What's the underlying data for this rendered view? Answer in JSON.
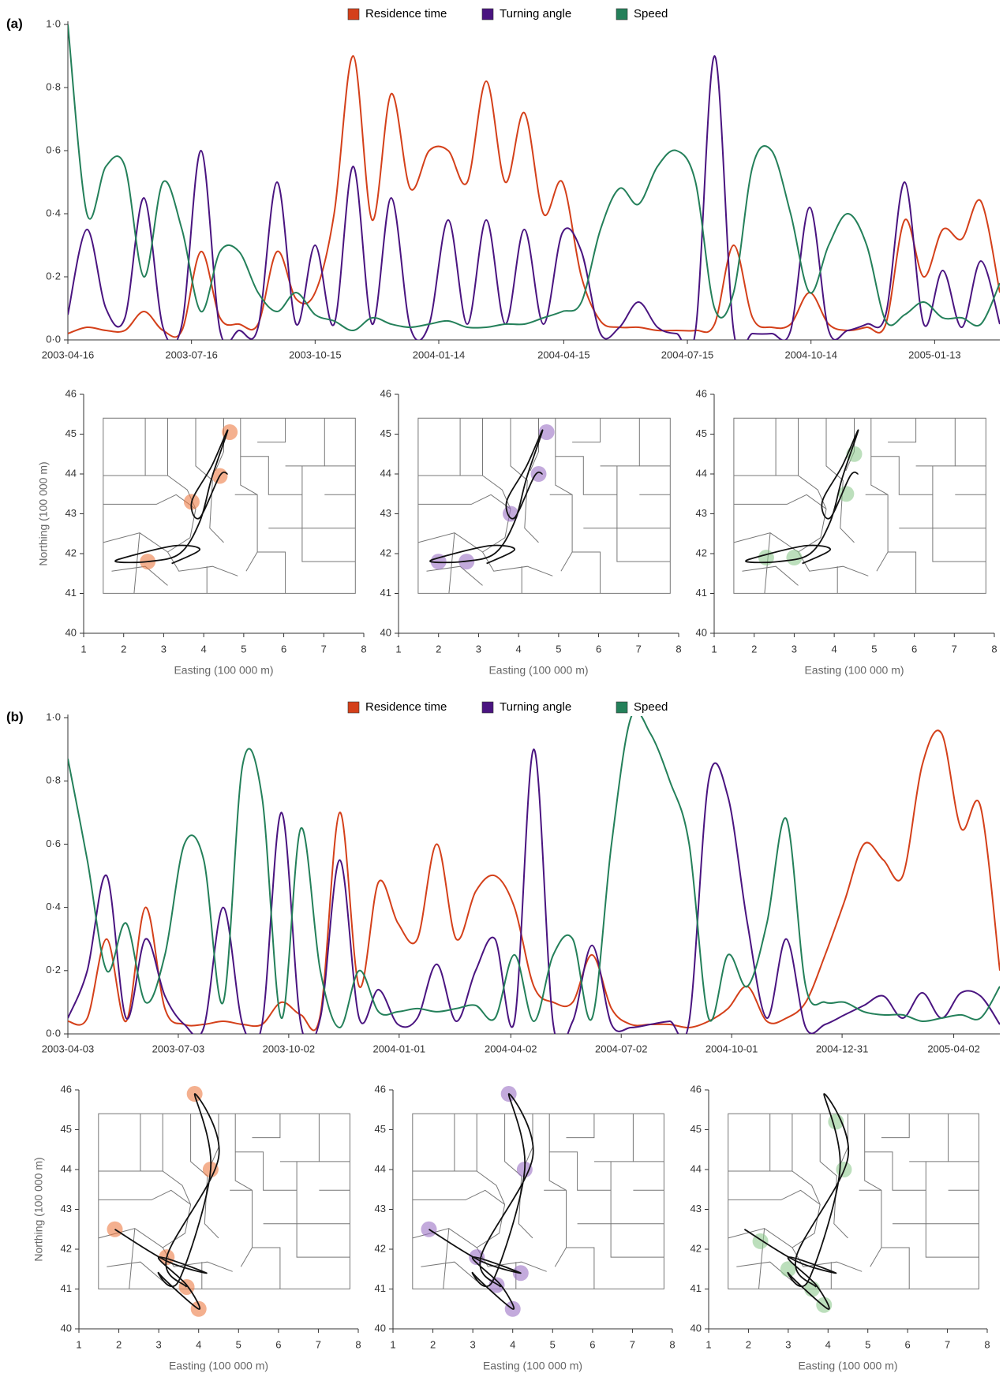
{
  "chart_data": [
    {
      "type": "line",
      "label": "(a)",
      "x": [
        "2003-04-16",
        "2003-04-30",
        "2003-05-14",
        "2003-05-28",
        "2003-06-11",
        "2003-06-25",
        "2003-07-09",
        "2003-07-23",
        "2003-08-06",
        "2003-08-20",
        "2003-09-03",
        "2003-09-17",
        "2003-10-01",
        "2003-10-15",
        "2003-10-29",
        "2003-11-12",
        "2003-11-26",
        "2003-12-10",
        "2003-12-24",
        "2004-01-07",
        "2004-01-21",
        "2004-02-04",
        "2004-02-18",
        "2004-03-03",
        "2004-03-17",
        "2004-03-31",
        "2004-04-14",
        "2004-04-28",
        "2004-05-12",
        "2004-05-26",
        "2004-06-09",
        "2004-06-23",
        "2004-07-07",
        "2004-07-21",
        "2004-08-04",
        "2004-08-18",
        "2004-09-01",
        "2004-09-15",
        "2004-09-29",
        "2004-10-13",
        "2004-10-27",
        "2004-11-10",
        "2004-11-24",
        "2004-12-08",
        "2004-12-22",
        "2005-01-05",
        "2005-01-19",
        "2005-02-02",
        "2005-02-16",
        "2005-03-02"
      ],
      "series": [
        {
          "name": "Residence time",
          "color": "#d4401a",
          "values": [
            0.02,
            0.04,
            0.03,
            0.03,
            0.09,
            0.03,
            0.03,
            0.28,
            0.07,
            0.05,
            0.05,
            0.28,
            0.13,
            0.15,
            0.4,
            0.9,
            0.38,
            0.78,
            0.48,
            0.6,
            0.6,
            0.5,
            0.82,
            0.5,
            0.72,
            0.4,
            0.5,
            0.2,
            0.06,
            0.04,
            0.04,
            0.03,
            0.03,
            0.03,
            0.05,
            0.3,
            0.07,
            0.04,
            0.05,
            0.15,
            0.05,
            0.03,
            0.04,
            0.05,
            0.38,
            0.2,
            0.35,
            0.32,
            0.44,
            0.15
          ]
        },
        {
          "name": "Turning angle",
          "color": "#4a1480",
          "values": [
            0.08,
            0.35,
            0.1,
            0.07,
            0.45,
            0.04,
            0.05,
            0.6,
            0.03,
            0.03,
            0.04,
            0.5,
            0.05,
            0.3,
            0.05,
            0.55,
            0.05,
            0.45,
            0.04,
            0.05,
            0.38,
            0.05,
            0.38,
            0.05,
            0.35,
            0.05,
            0.34,
            0.28,
            0.02,
            0.04,
            0.12,
            0.04,
            0.02,
            0.03,
            0.9,
            0.03,
            0.02,
            0.02,
            0.03,
            0.42,
            0.03,
            0.03,
            0.05,
            0.08,
            0.5,
            0.05,
            0.22,
            0.04,
            0.25,
            0.05
          ]
        },
        {
          "name": "Speed",
          "color": "#24805a",
          "values": [
            1.0,
            0.4,
            0.55,
            0.55,
            0.2,
            0.5,
            0.35,
            0.09,
            0.28,
            0.28,
            0.15,
            0.09,
            0.15,
            0.08,
            0.06,
            0.03,
            0.07,
            0.05,
            0.04,
            0.05,
            0.06,
            0.04,
            0.04,
            0.05,
            0.05,
            0.07,
            0.09,
            0.12,
            0.35,
            0.48,
            0.43,
            0.55,
            0.6,
            0.5,
            0.1,
            0.15,
            0.55,
            0.6,
            0.4,
            0.15,
            0.3,
            0.4,
            0.3,
            0.06,
            0.08,
            0.12,
            0.07,
            0.07,
            0.05,
            0.18
          ]
        }
      ],
      "xlim": [
        "2003-04-16",
        "2005-03-02"
      ],
      "xticks": [
        "2003-04-16",
        "2003-07-16",
        "2003-10-15",
        "2004-01-14",
        "2004-04-15",
        "2004-07-15",
        "2004-10-14",
        "2005-01-13"
      ],
      "ylim": [
        0,
        1
      ],
      "yticks": [
        {
          "value": 0,
          "label": "0·0"
        },
        {
          "value": 0.2,
          "label": "0·2"
        },
        {
          "value": 0.4,
          "label": "0·4"
        },
        {
          "value": 0.6,
          "label": "0·6"
        },
        {
          "value": 0.8,
          "label": "0·8"
        },
        {
          "value": 1,
          "label": "1·0"
        }
      ]
    },
    {
      "type": "track",
      "xlabel": "Easting (100 000 m)",
      "ylabel": "Northing (100 000 m)",
      "xlim": [
        1,
        8
      ],
      "ylim": [
        40,
        46
      ],
      "xticks": [
        1,
        2,
        3,
        4,
        5,
        6,
        7,
        8
      ],
      "yticks": [
        40,
        41,
        42,
        43,
        44,
        45,
        46
      ],
      "track_x": [
        3.2,
        3.9,
        3.3,
        2.2,
        1.8,
        2.6,
        3.4,
        3.9,
        4.2,
        4.6,
        4.2,
        3.7,
        3.9,
        4.4,
        4.6
      ],
      "track_y": [
        41.75,
        42.1,
        42.2,
        41.95,
        41.8,
        41.8,
        42.0,
        42.8,
        43.9,
        45.1,
        44.2,
        43.3,
        42.9,
        43.95,
        44.0
      ],
      "maps": [
        {
          "color": "#ec7b45",
          "hotspots_x": [
            4.65,
            4.4,
            2.6,
            3.7
          ],
          "hotspots_y": [
            45.05,
            43.95,
            41.8,
            43.3
          ]
        },
        {
          "color": "#9b72c4",
          "hotspots_x": [
            4.7,
            4.5,
            3.8,
            2.7,
            2.0
          ],
          "hotspots_y": [
            45.05,
            44.0,
            43.0,
            41.8,
            41.8
          ]
        },
        {
          "color": "#8fca8f",
          "hotspots_x": [
            3.0,
            2.3,
            4.3,
            4.5
          ],
          "hotspots_y": [
            41.9,
            41.9,
            43.5,
            44.5
          ]
        }
      ]
    },
    {
      "type": "line",
      "label": "(b)",
      "x": [
        "2003-04-03",
        "2003-04-19",
        "2003-05-05",
        "2003-05-21",
        "2003-06-06",
        "2003-06-22",
        "2003-07-08",
        "2003-07-24",
        "2003-08-09",
        "2003-08-25",
        "2003-09-10",
        "2003-09-26",
        "2003-10-12",
        "2003-10-28",
        "2003-11-13",
        "2003-11-29",
        "2003-12-15",
        "2003-12-31",
        "2004-01-16",
        "2004-02-01",
        "2004-02-17",
        "2004-03-04",
        "2004-03-20",
        "2004-04-05",
        "2004-04-21",
        "2004-05-07",
        "2004-05-23",
        "2004-06-08",
        "2004-06-24",
        "2004-07-10",
        "2004-07-26",
        "2004-08-11",
        "2004-08-27",
        "2004-09-12",
        "2004-09-28",
        "2004-10-14",
        "2004-10-30",
        "2004-11-15",
        "2004-12-01",
        "2004-12-17",
        "2005-01-02",
        "2005-01-18",
        "2005-02-03",
        "2005-02-19",
        "2005-03-07",
        "2005-03-23",
        "2005-04-08",
        "2005-04-24",
        "2005-05-10"
      ],
      "series": [
        {
          "name": "Residence time",
          "color": "#d4401a",
          "values": [
            0.04,
            0.05,
            0.3,
            0.04,
            0.4,
            0.08,
            0.03,
            0.03,
            0.04,
            0.03,
            0.03,
            0.1,
            0.06,
            0.06,
            0.7,
            0.15,
            0.48,
            0.35,
            0.3,
            0.6,
            0.3,
            0.45,
            0.5,
            0.4,
            0.15,
            0.1,
            0.1,
            0.25,
            0.08,
            0.03,
            0.03,
            0.03,
            0.02,
            0.04,
            0.08,
            0.15,
            0.04,
            0.05,
            0.1,
            0.25,
            0.42,
            0.6,
            0.55,
            0.5,
            0.85,
            0.95,
            0.65,
            0.72,
            0.2
          ]
        },
        {
          "name": "Turning angle",
          "color": "#4a1480",
          "values": [
            0.05,
            0.2,
            0.5,
            0.05,
            0.3,
            0.12,
            0.03,
            0.02,
            0.4,
            0.03,
            0.03,
            0.7,
            0.03,
            0.05,
            0.55,
            0.05,
            0.14,
            0.03,
            0.05,
            0.22,
            0.04,
            0.2,
            0.3,
            0.04,
            0.9,
            0.03,
            0.04,
            0.28,
            0.03,
            0.02,
            0.03,
            0.04,
            0.04,
            0.8,
            0.75,
            0.35,
            0.05,
            0.3,
            0.02,
            0.03,
            0.06,
            0.09,
            0.12,
            0.05,
            0.13,
            0.05,
            0.13,
            0.12,
            0.03
          ]
        },
        {
          "name": "Speed",
          "color": "#24805a",
          "values": [
            0.87,
            0.55,
            0.2,
            0.35,
            0.1,
            0.25,
            0.6,
            0.55,
            0.1,
            0.85,
            0.75,
            0.05,
            0.65,
            0.2,
            0.02,
            0.2,
            0.07,
            0.07,
            0.08,
            0.07,
            0.08,
            0.09,
            0.05,
            0.25,
            0.04,
            0.25,
            0.3,
            0.05,
            0.6,
            1.0,
            0.95,
            0.8,
            0.6,
            0.05,
            0.25,
            0.15,
            0.35,
            0.68,
            0.15,
            0.1,
            0.1,
            0.07,
            0.06,
            0.06,
            0.04,
            0.05,
            0.06,
            0.05,
            0.15
          ]
        }
      ],
      "xlim": [
        "2003-04-03",
        "2005-05-10"
      ],
      "xticks": [
        "2003-04-03",
        "2003-07-03",
        "2003-10-02",
        "2004-01-01",
        "2004-04-02",
        "2004-07-02",
        "2004-10-01",
        "2004-12-31",
        "2005-04-02"
      ],
      "ylim": [
        0,
        1
      ],
      "yticks": [
        {
          "value": 0,
          "label": "0·0"
        },
        {
          "value": 0.2,
          "label": "0·2"
        },
        {
          "value": 0.4,
          "label": "0·4"
        },
        {
          "value": 0.6,
          "label": "0·6"
        },
        {
          "value": 0.8,
          "label": "0·8"
        },
        {
          "value": 1,
          "label": "1·0"
        }
      ]
    },
    {
      "type": "track",
      "xlabel": "Easting (100 000 m)",
      "ylabel": "Northing (100 000 m)",
      "xlim": [
        1,
        8
      ],
      "ylim": [
        40,
        46
      ],
      "xticks": [
        1,
        2,
        3,
        4,
        5,
        6,
        7,
        8
      ],
      "yticks": [
        40,
        41,
        42,
        43,
        44,
        45,
        46
      ],
      "track_x": [
        1.9,
        3.2,
        4.2,
        3.0,
        3.7,
        4.0,
        3.0,
        3.5,
        4.3,
        3.9,
        4.5,
        3.2,
        3.7
      ],
      "track_y": [
        42.5,
        41.7,
        41.4,
        41.8,
        41.1,
        40.5,
        41.4,
        41.2,
        44.0,
        45.9,
        44.3,
        41.8,
        41.05
      ],
      "maps": [
        {
          "color": "#ec7b45",
          "hotspots_x": [
            3.9,
            4.3,
            3.2,
            3.7,
            1.9,
            4.0
          ],
          "hotspots_y": [
            45.9,
            44.0,
            41.8,
            41.05,
            42.5,
            40.5
          ]
        },
        {
          "color": "#9b72c4",
          "hotspots_x": [
            3.9,
            4.3,
            1.9,
            3.1,
            4.2,
            3.6,
            4.0
          ],
          "hotspots_y": [
            45.9,
            44.0,
            42.5,
            41.8,
            41.4,
            41.1,
            40.5
          ]
        },
        {
          "color": "#8fca8f",
          "hotspots_x": [
            2.3,
            3.0,
            4.2,
            4.4,
            3.6,
            3.9
          ],
          "hotspots_y": [
            42.2,
            41.5,
            45.2,
            44.0,
            41.0,
            40.6
          ]
        }
      ]
    }
  ]
}
